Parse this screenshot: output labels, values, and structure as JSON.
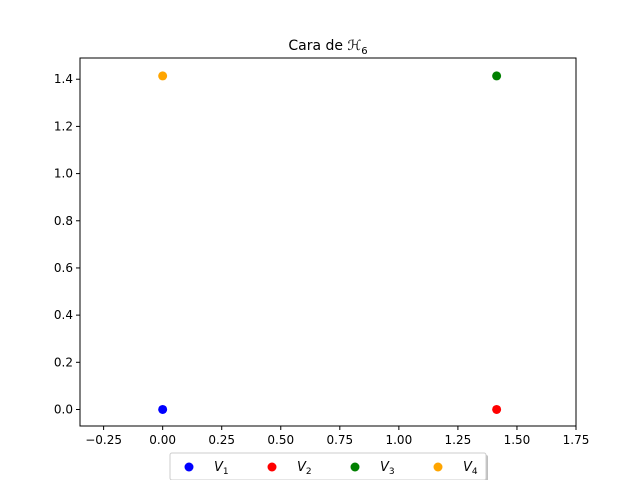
{
  "chart_data": {
    "type": "scatter",
    "title": "Cara de ℋ",
    "title_sub": "6",
    "xlabel": "",
    "ylabel": "",
    "xlim": [
      -0.35,
      1.75
    ],
    "ylim": [
      -0.07,
      1.49
    ],
    "xticks": [
      -0.25,
      0.0,
      0.25,
      0.5,
      0.75,
      1.0,
      1.25,
      1.5,
      1.75
    ],
    "xtick_labels": [
      "−0.25",
      "0.00",
      "0.25",
      "0.50",
      "0.75",
      "1.00",
      "1.25",
      "1.50",
      "1.75"
    ],
    "yticks": [
      0.0,
      0.2,
      0.4,
      0.6,
      0.8,
      1.0,
      1.2,
      1.4
    ],
    "ytick_labels": [
      "0.0",
      "0.2",
      "0.4",
      "0.6",
      "0.8",
      "1.0",
      "1.2",
      "1.4"
    ],
    "grid": false,
    "legend_position": "bottom-center",
    "series": [
      {
        "name": "V",
        "sub": "1",
        "color": "#0000ff",
        "x": [
          0.0
        ],
        "y": [
          0.0
        ]
      },
      {
        "name": "V",
        "sub": "2",
        "color": "#ff0000",
        "x": [
          1.414
        ],
        "y": [
          0.0
        ]
      },
      {
        "name": "V",
        "sub": "3",
        "color": "#008000",
        "x": [
          1.414
        ],
        "y": [
          1.414
        ]
      },
      {
        "name": "V",
        "sub": "4",
        "color": "#ffa500",
        "x": [
          0.0
        ],
        "y": [
          1.414
        ]
      }
    ]
  }
}
